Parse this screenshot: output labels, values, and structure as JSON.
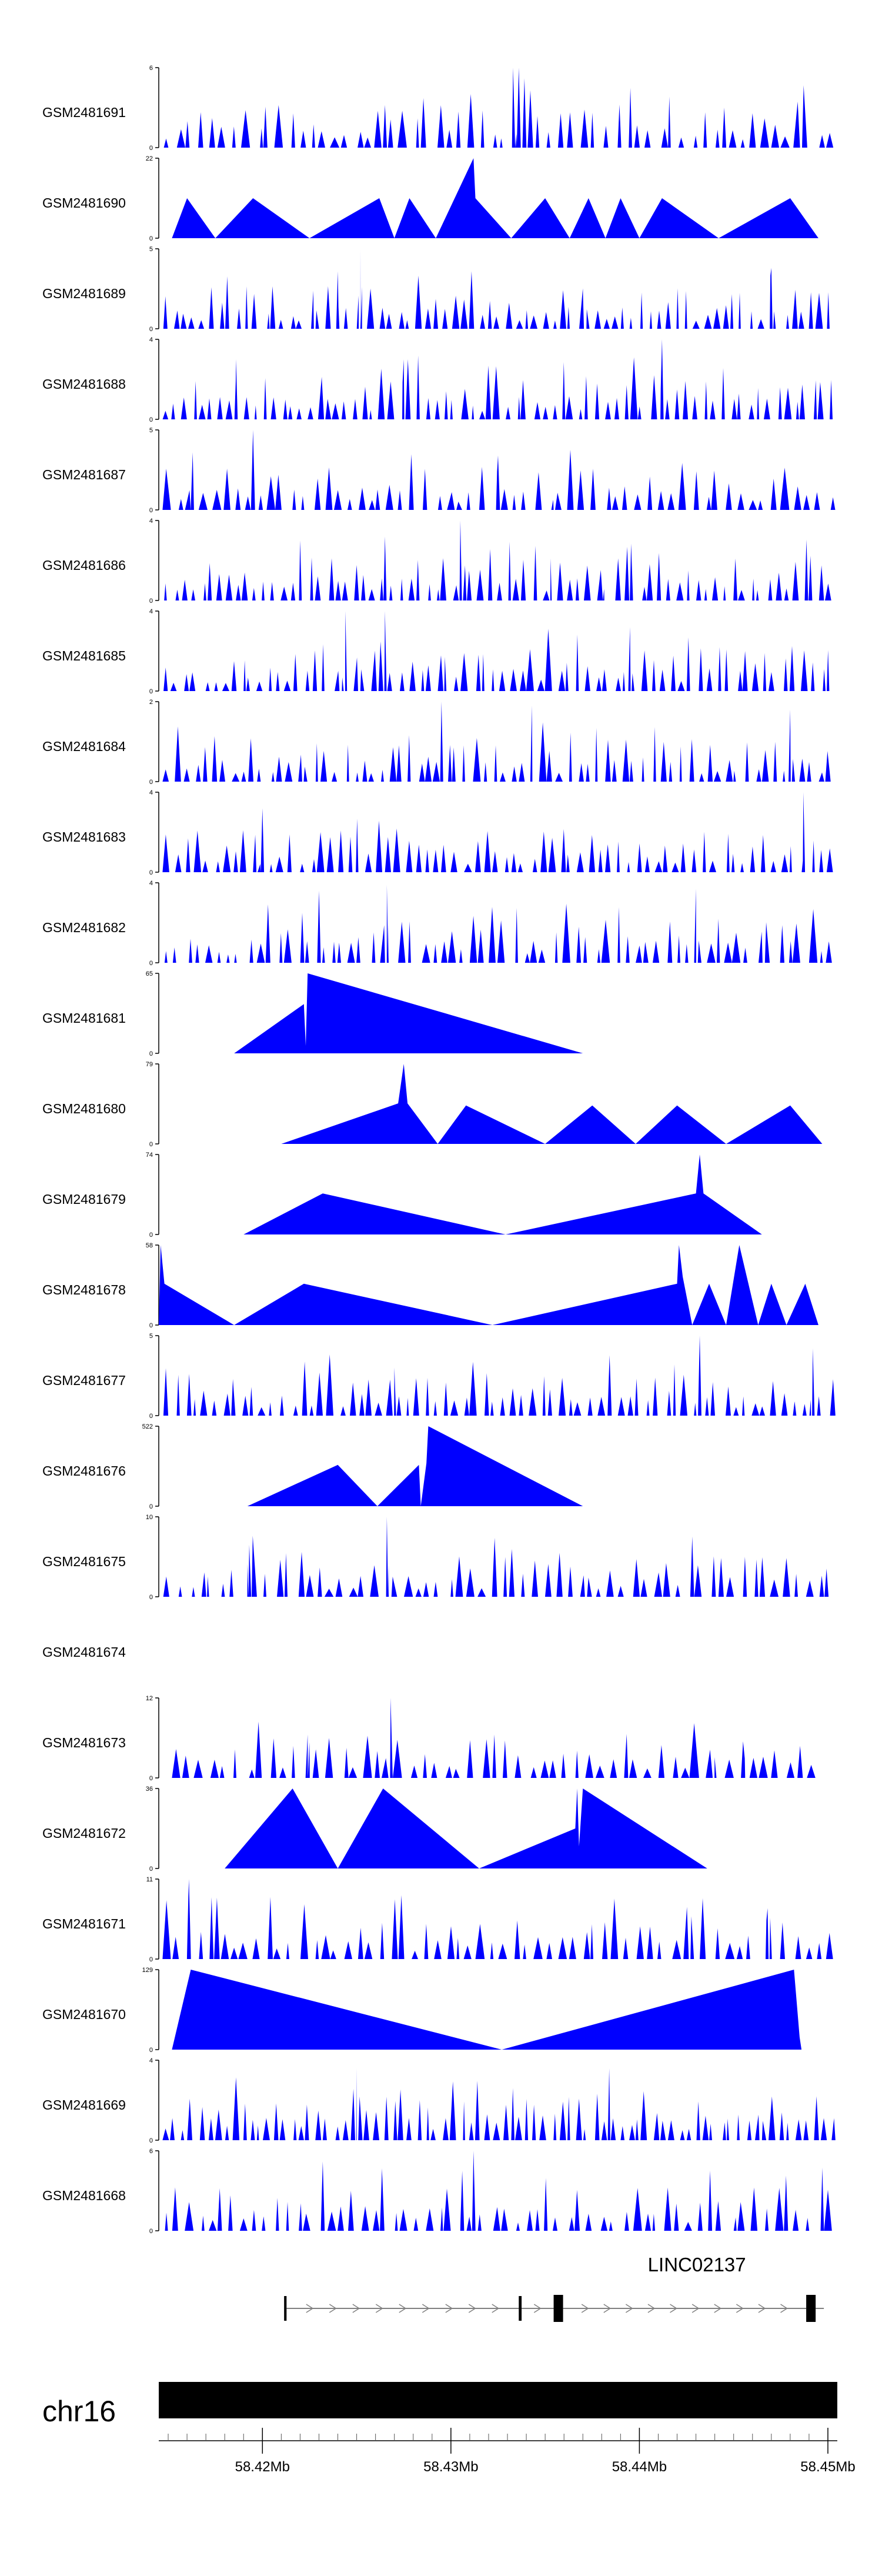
{
  "figure": {
    "chromosome": "chr16",
    "gene_label": "LINC02137",
    "colors": {
      "signal": "#0000ff",
      "axis": "#000000",
      "ideogram": "#000000",
      "gene": "#000000",
      "intron_arrow": "#808080"
    }
  },
  "chart_data": {
    "type": "area",
    "title": "",
    "xlabel": "",
    "ylabel": "",
    "x_unit": "Mb",
    "xlim": [
      58.4145,
      58.4505
    ],
    "x_ticks": [
      58.42,
      58.43,
      58.44,
      58.45
    ],
    "x_tick_labels": [
      "58.42Mb",
      "58.43Mb",
      "58.44Mb",
      "58.45Mb"
    ],
    "series": [
      {
        "name": "GSM2481691",
        "ylim": [
          0,
          6
        ],
        "y_tick_labels": [
          "0",
          "6"
        ],
        "kind": "dense",
        "seed": 11,
        "density": 60,
        "peaks": [
          [
            58.4333,
            6.0
          ],
          [
            58.4336,
            6.0
          ],
          [
            58.4339,
            5.2
          ],
          [
            58.4265,
            3.2
          ],
          [
            58.4445,
            3.0
          ]
        ]
      },
      {
        "name": "GSM2481690",
        "ylim": [
          0,
          22
        ],
        "y_tick_labels": [
          "0",
          "22"
        ],
        "kind": "sparse",
        "points": [
          [
            58.4152,
            0
          ],
          [
            58.416,
            11
          ],
          [
            58.4175,
            0
          ],
          [
            58.4195,
            11
          ],
          [
            58.4225,
            0
          ],
          [
            58.4262,
            11
          ],
          [
            58.427,
            0
          ],
          [
            58.4278,
            11
          ],
          [
            58.4292,
            0
          ],
          [
            58.4312,
            22
          ],
          [
            58.4313,
            11
          ],
          [
            58.4332,
            0
          ],
          [
            58.435,
            11
          ],
          [
            58.4363,
            0
          ],
          [
            58.4373,
            11
          ],
          [
            58.4382,
            0
          ],
          [
            58.439,
            11
          ],
          [
            58.44,
            0
          ],
          [
            58.4412,
            11
          ],
          [
            58.4442,
            0
          ],
          [
            58.448,
            11
          ],
          [
            58.4495,
            0
          ]
        ]
      },
      {
        "name": "GSM2481689",
        "ylim": [
          0,
          5
        ],
        "y_tick_labels": [
          "0",
          "5"
        ],
        "kind": "dense",
        "seed": 23,
        "density": 75,
        "peaks": [
          [
            58.4252,
            5.0
          ],
          [
            58.424,
            3.6
          ],
          [
            58.447,
            3.8
          ]
        ]
      },
      {
        "name": "GSM2481688",
        "ylim": [
          0,
          4
        ],
        "y_tick_labels": [
          "0",
          "4"
        ],
        "kind": "dense",
        "seed": 37,
        "density": 75,
        "peaks": [
          [
            58.4412,
            4.0
          ],
          [
            58.4275,
            3.0
          ],
          [
            58.4186,
            3.0
          ]
        ]
      },
      {
        "name": "GSM2481687",
        "ylim": [
          0,
          5
        ],
        "y_tick_labels": [
          "0",
          "5"
        ],
        "kind": "dense",
        "seed": 41,
        "density": 60,
        "peaks": [
          [
            58.4195,
            5.0
          ],
          [
            58.4163,
            3.6
          ],
          [
            58.4325,
            3.4
          ]
        ]
      },
      {
        "name": "GSM2481686",
        "ylim": [
          0,
          4
        ],
        "y_tick_labels": [
          "0",
          "4"
        ],
        "kind": "dense",
        "seed": 53,
        "density": 75,
        "peaks": [
          [
            58.4305,
            4.0
          ],
          [
            58.4265,
            3.2
          ],
          [
            58.422,
            3.0
          ]
        ]
      },
      {
        "name": "GSM2481685",
        "ylim": [
          0,
          4
        ],
        "y_tick_labels": [
          "0",
          "4"
        ],
        "kind": "dense",
        "seed": 67,
        "density": 72,
        "peaks": [
          [
            58.4244,
            4.0
          ],
          [
            58.4265,
            4.0
          ],
          [
            58.4395,
            3.2
          ]
        ]
      },
      {
        "name": "GSM2481684",
        "ylim": [
          0,
          2
        ],
        "y_tick_labels": [
          "0",
          "2"
        ],
        "kind": "dense",
        "seed": 71,
        "density": 72,
        "peaks": [
          [
            58.4295,
            2.0
          ],
          [
            58.4343,
            1.9
          ],
          [
            58.448,
            1.8
          ]
        ]
      },
      {
        "name": "GSM2481683",
        "ylim": [
          0,
          4
        ],
        "y_tick_labels": [
          "0",
          "4"
        ],
        "kind": "dense",
        "seed": 83,
        "density": 70,
        "peaks": [
          [
            58.4487,
            4.0
          ],
          [
            58.42,
            3.2
          ]
        ]
      },
      {
        "name": "GSM2481682",
        "ylim": [
          0,
          4
        ],
        "y_tick_labels": [
          "0",
          "4"
        ],
        "kind": "dense",
        "seed": 97,
        "density": 66,
        "peaks": [
          [
            58.4266,
            3.9
          ],
          [
            58.423,
            3.6
          ],
          [
            58.443,
            3.7
          ]
        ]
      },
      {
        "name": "GSM2481681",
        "ylim": [
          0,
          65
        ],
        "y_tick_labels": [
          "0",
          "65"
        ],
        "kind": "sparse",
        "points": [
          [
            58.4185,
            0
          ],
          [
            58.4222,
            40
          ],
          [
            58.4223,
            6
          ],
          [
            58.4224,
            65
          ],
          [
            58.437,
            0
          ]
        ]
      },
      {
        "name": "GSM2481680",
        "ylim": [
          0,
          79
        ],
        "y_tick_labels": [
          "0",
          "79"
        ],
        "kind": "sparse",
        "points": [
          [
            58.421,
            0
          ],
          [
            58.4272,
            40
          ],
          [
            58.4275,
            79
          ],
          [
            58.4277,
            40
          ],
          [
            58.4293,
            0
          ],
          [
            58.4308,
            38
          ],
          [
            58.435,
            0
          ],
          [
            58.4375,
            38
          ],
          [
            58.4398,
            0
          ],
          [
            58.442,
            38
          ],
          [
            58.4446,
            0
          ],
          [
            58.448,
            38
          ],
          [
            58.4497,
            0
          ]
        ]
      },
      {
        "name": "GSM2481679",
        "ylim": [
          0,
          74
        ],
        "y_tick_labels": [
          "0",
          "74"
        ],
        "kind": "sparse",
        "points": [
          [
            58.419,
            0
          ],
          [
            58.4232,
            38
          ],
          [
            58.4329,
            0
          ],
          [
            58.443,
            38
          ],
          [
            58.4432,
            74
          ],
          [
            58.4434,
            38
          ],
          [
            58.4465,
            0
          ]
        ]
      },
      {
        "name": "GSM2481678",
        "ylim": [
          0,
          58
        ],
        "y_tick_labels": [
          "0",
          "58"
        ],
        "kind": "sparse",
        "points": [
          [
            58.4145,
            0
          ],
          [
            58.4146,
            58
          ],
          [
            58.4148,
            30
          ],
          [
            58.4185,
            0
          ],
          [
            58.4222,
            30
          ],
          [
            58.4322,
            0
          ],
          [
            58.442,
            30
          ],
          [
            58.4421,
            58
          ],
          [
            58.4423,
            35
          ],
          [
            58.4428,
            0
          ],
          [
            58.4437,
            30
          ],
          [
            58.4446,
            0
          ],
          [
            58.4453,
            58
          ],
          [
            58.4463,
            0
          ],
          [
            58.447,
            30
          ],
          [
            58.4478,
            0
          ],
          [
            58.4488,
            30
          ],
          [
            58.4495,
            0
          ]
        ]
      },
      {
        "name": "GSM2481677",
        "ylim": [
          0,
          5
        ],
        "y_tick_labels": [
          "0",
          "5"
        ],
        "kind": "dense",
        "seed": 101,
        "density": 70,
        "peaks": [
          [
            58.4432,
            5.0
          ],
          [
            58.4492,
            4.2
          ],
          [
            58.427,
            3.0
          ]
        ]
      },
      {
        "name": "GSM2481676",
        "ylim": [
          0,
          522
        ],
        "y_tick_labels": [
          "0",
          "522"
        ],
        "kind": "sparse",
        "points": [
          [
            58.4192,
            0
          ],
          [
            58.424,
            270
          ],
          [
            58.4261,
            0
          ],
          [
            58.4283,
            270
          ],
          [
            58.4284,
            0
          ],
          [
            58.4287,
            280
          ],
          [
            58.4288,
            522
          ],
          [
            58.437,
            0
          ]
        ]
      },
      {
        "name": "GSM2481675",
        "ylim": [
          0,
          10
        ],
        "y_tick_labels": [
          "0",
          "10"
        ],
        "kind": "dense",
        "seed": 113,
        "density": 62,
        "peaks": [
          [
            58.4266,
            10.0
          ],
          [
            58.4193,
            6.5
          ]
        ]
      },
      {
        "name": "GSM2481674",
        "ylim": null,
        "y_tick_labels": [],
        "kind": "empty"
      },
      {
        "name": "GSM2481673",
        "ylim": [
          0,
          12
        ],
        "y_tick_labels": [
          "0",
          "12"
        ],
        "kind": "dense",
        "seed": 127,
        "density": 55,
        "x_start": 58.4152,
        "x_end": 58.4495,
        "peaks": [
          [
            58.4268,
            12.0
          ],
          [
            58.4224,
            6.5
          ],
          [
            58.4455,
            5.5
          ]
        ]
      },
      {
        "name": "GSM2481672",
        "ylim": [
          0,
          36
        ],
        "y_tick_labels": [
          "0",
          "36"
        ],
        "kind": "sparse",
        "points": [
          [
            58.418,
            0
          ],
          [
            58.4216,
            36
          ],
          [
            58.424,
            0
          ],
          [
            58.4264,
            36
          ],
          [
            58.4315,
            0
          ],
          [
            58.4366,
            18
          ],
          [
            58.4367,
            36
          ],
          [
            58.4368,
            10
          ],
          [
            58.437,
            36
          ],
          [
            58.4436,
            0
          ]
        ]
      },
      {
        "name": "GSM2481671",
        "ylim": [
          0,
          11
        ],
        "y_tick_labels": [
          "0",
          "11"
        ],
        "kind": "dense",
        "seed": 139,
        "density": 60,
        "peaks": [
          [
            58.4161,
            11.0
          ],
          [
            58.4173,
            8.5
          ],
          [
            58.4468,
            7.0
          ]
        ]
      },
      {
        "name": "GSM2481670",
        "ylim": [
          0,
          129
        ],
        "y_tick_labels": [
          "0",
          "129"
        ],
        "kind": "sparse",
        "points": [
          [
            58.4152,
            0
          ],
          [
            58.4162,
            129
          ],
          [
            58.4327,
            0
          ],
          [
            58.4482,
            129
          ],
          [
            58.4485,
            20
          ],
          [
            58.4486,
            0
          ]
        ]
      },
      {
        "name": "GSM2481669",
        "ylim": [
          0,
          4
        ],
        "y_tick_labels": [
          "0",
          "4"
        ],
        "kind": "dense",
        "seed": 151,
        "density": 80,
        "peaks": [
          [
            58.425,
            3.6
          ],
          [
            58.4384,
            3.6
          ]
        ]
      },
      {
        "name": "GSM2481668",
        "ylim": [
          0,
          6
        ],
        "y_tick_labels": [
          "0",
          "6"
        ],
        "kind": "dense",
        "seed": 163,
        "density": 62,
        "peaks": [
          [
            58.4312,
            6.0
          ],
          [
            58.4306,
            4.5
          ],
          [
            58.4232,
            5.2
          ]
        ]
      }
    ],
    "gene_model": {
      "name": "LINC02137",
      "strand": "+",
      "exons": [
        [
          58.42115,
          58.42128
        ],
        [
          58.4336,
          58.43375
        ],
        [
          58.43545,
          58.43595
        ],
        [
          58.44885,
          58.44935
        ]
      ],
      "introns": [
        [
          58.42128,
          58.4336
        ],
        [
          58.43375,
          58.43545
        ],
        [
          58.43595,
          58.44885
        ]
      ]
    }
  }
}
